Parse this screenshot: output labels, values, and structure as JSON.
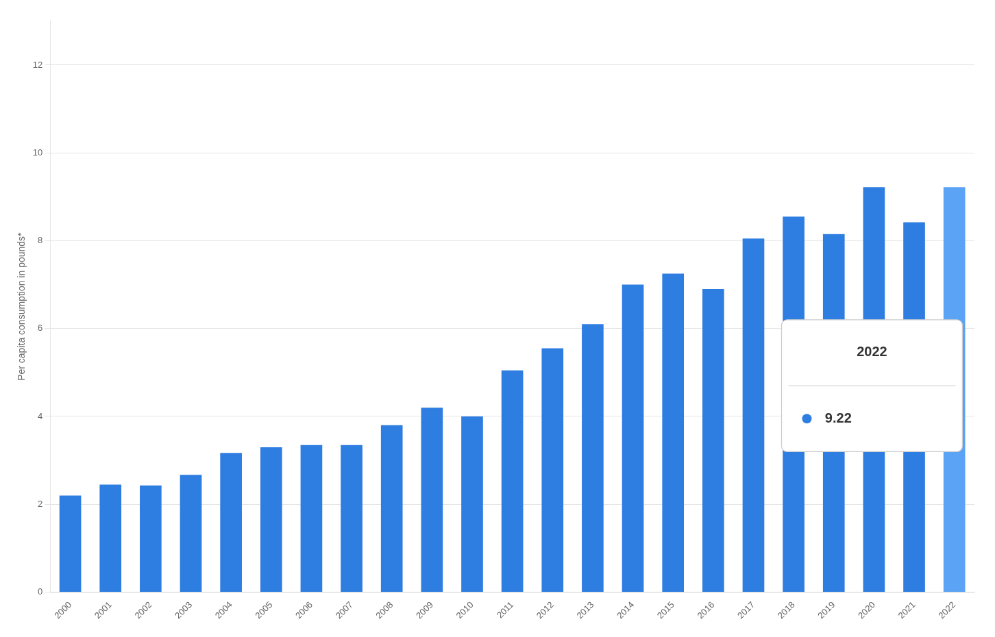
{
  "chart_data": {
    "type": "bar",
    "categories": [
      "2000",
      "2001",
      "2002",
      "2003",
      "2004",
      "2005",
      "2006",
      "2007",
      "2008",
      "2009",
      "2010",
      "2011",
      "2012",
      "2013",
      "2014",
      "2015",
      "2016",
      "2017",
      "2018",
      "2019",
      "2020",
      "2021",
      "2022"
    ],
    "values": [
      2.2,
      2.45,
      2.43,
      2.67,
      3.17,
      3.3,
      3.35,
      3.35,
      3.8,
      4.2,
      4.0,
      5.05,
      5.55,
      6.1,
      7.0,
      7.25,
      6.9,
      8.05,
      8.55,
      8.15,
      9.22,
      8.42,
      9.22
    ],
    "colors": [
      "#2e7de1",
      "#2e7de1",
      "#2e7de1",
      "#2e7de1",
      "#2e7de1",
      "#2e7de1",
      "#2e7de1",
      "#2e7de1",
      "#2e7de1",
      "#2e7de1",
      "#2e7de1",
      "#2e7de1",
      "#2e7de1",
      "#2e7de1",
      "#2e7de1",
      "#2e7de1",
      "#2e7de1",
      "#2e7de1",
      "#2e7de1",
      "#2e7de1",
      "#2e7de1",
      "#2e7de1",
      "#5ba3f5"
    ],
    "ylabel": "Per capita consumption in pounds*",
    "ylim": [
      0,
      13.0
    ],
    "yticks": [
      0,
      2,
      4,
      6,
      8,
      10,
      12
    ],
    "grid": true,
    "annotations": [
      {
        "text": "2022"
      },
      {
        "text": "9.22",
        "marker": "circle",
        "color": "#2e7de1"
      }
    ]
  }
}
